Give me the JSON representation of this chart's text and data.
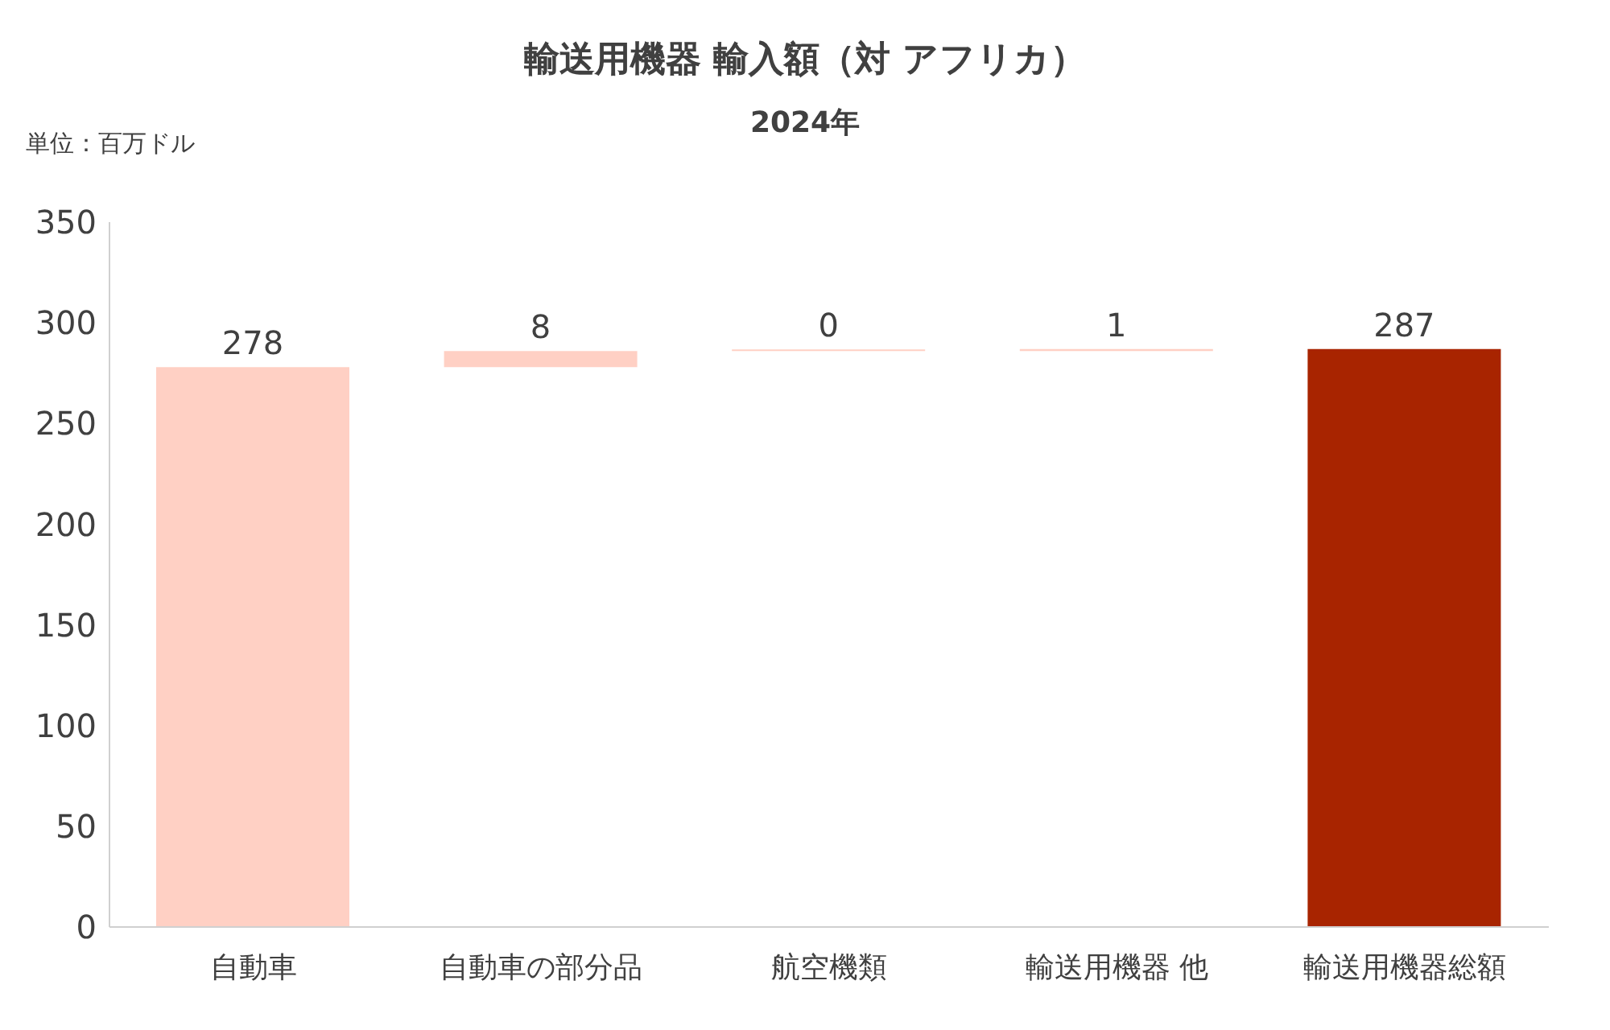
{
  "chart_data": {
    "type": "bar",
    "title": "輸送用機器 輸入額（対 アフリカ）",
    "subtitle": "2024年",
    "annotations": [
      "単位：百万ドル"
    ],
    "categories": [
      "自動車",
      "自動車の部分品",
      "航空機類",
      "輸送用機器 他",
      "輸送用機器総額"
    ],
    "values": [
      278,
      8,
      0,
      1,
      287
    ],
    "base": [
      0,
      278,
      286,
      286,
      0
    ],
    "colors": [
      "#ffd0c4",
      "#ffd0c4",
      "#ffd0c4",
      "#ffd0c4",
      "#a82400"
    ],
    "ylim": [
      0,
      350
    ],
    "yticks": [
      0,
      50,
      100,
      150,
      200,
      250,
      300,
      350
    ],
    "data_labels": true
  }
}
